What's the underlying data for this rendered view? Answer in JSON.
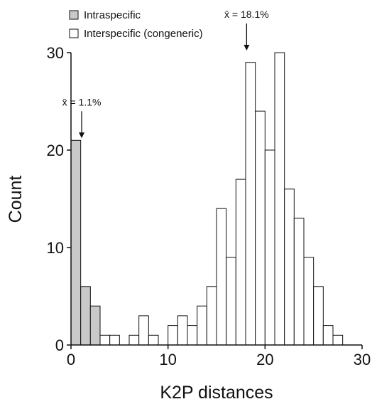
{
  "chart_data": {
    "type": "bar",
    "xlabel": "K2P distances",
    "ylabel": "Count",
    "xlim": [
      0,
      30
    ],
    "ylim": [
      0,
      30
    ],
    "xticks": [
      0,
      10,
      20,
      30
    ],
    "yticks": [
      0,
      10,
      20,
      30
    ],
    "bin_width": 1,
    "grid": false,
    "legend_position": "top-left",
    "series": [
      {
        "name": "Intraspecific",
        "color": "#c9c9c9",
        "bins": [
          {
            "x0": 0,
            "x1": 1,
            "count": 21
          },
          {
            "x0": 1,
            "x1": 2,
            "count": 6
          },
          {
            "x0": 2,
            "x1": 3,
            "count": 4
          }
        ]
      },
      {
        "name": "Interspecific (congeneric)",
        "color": "#ffffff",
        "bins": [
          {
            "x0": 3,
            "x1": 4,
            "count": 1
          },
          {
            "x0": 4,
            "x1": 5,
            "count": 1
          },
          {
            "x0": 6,
            "x1": 7,
            "count": 1
          },
          {
            "x0": 7,
            "x1": 8,
            "count": 3
          },
          {
            "x0": 8,
            "x1": 9,
            "count": 1
          },
          {
            "x0": 10,
            "x1": 11,
            "count": 2
          },
          {
            "x0": 11,
            "x1": 12,
            "count": 3
          },
          {
            "x0": 12,
            "x1": 13,
            "count": 2
          },
          {
            "x0": 13,
            "x1": 14,
            "count": 4
          },
          {
            "x0": 14,
            "x1": 15,
            "count": 6
          },
          {
            "x0": 15,
            "x1": 16,
            "count": 14
          },
          {
            "x0": 16,
            "x1": 17,
            "count": 9
          },
          {
            "x0": 17,
            "x1": 18,
            "count": 17
          },
          {
            "x0": 18,
            "x1": 19,
            "count": 29
          },
          {
            "x0": 19,
            "x1": 20,
            "count": 24
          },
          {
            "x0": 20,
            "x1": 21,
            "count": 20
          },
          {
            "x0": 21,
            "x1": 22,
            "count": 30
          },
          {
            "x0": 22,
            "x1": 23,
            "count": 16
          },
          {
            "x0": 23,
            "x1": 24,
            "count": 13
          },
          {
            "x0": 24,
            "x1": 25,
            "count": 9
          },
          {
            "x0": 25,
            "x1": 26,
            "count": 6
          },
          {
            "x0": 26,
            "x1": 27,
            "count": 2
          },
          {
            "x0": 27,
            "x1": 28,
            "count": 1
          }
        ]
      }
    ],
    "annotations": [
      {
        "text": "x̄ = 1.1%",
        "x": 1.1,
        "arrow_tip_y": 21
      },
      {
        "text": "x̄ = 18.1%",
        "x": 18.1,
        "arrow_tip_y": 30
      }
    ]
  }
}
